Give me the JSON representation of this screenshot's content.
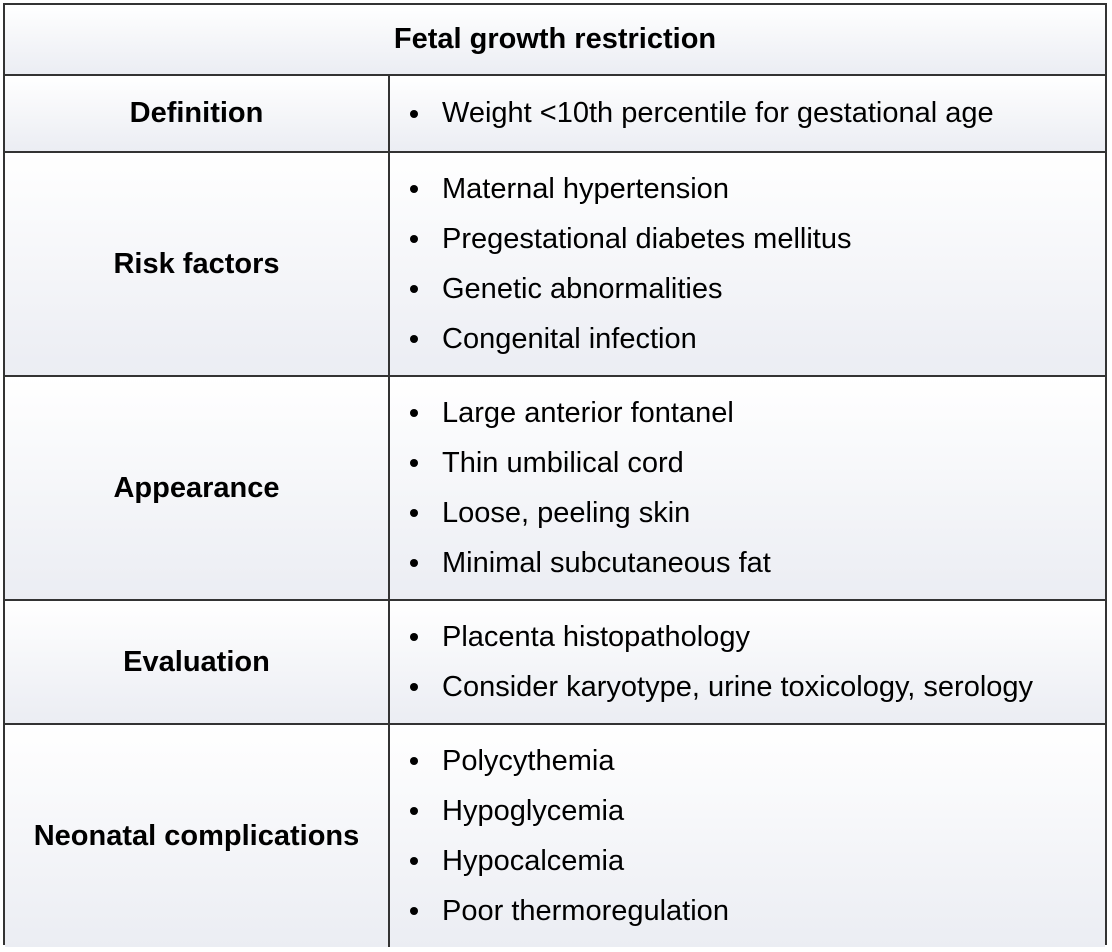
{
  "table": {
    "title": "Fetal growth restriction",
    "rows": [
      {
        "label": "Definition",
        "items": [
          "Weight <10th percentile for gestational age"
        ]
      },
      {
        "label": "Risk factors",
        "items": [
          "Maternal hypertension",
          "Pregestational diabetes mellitus",
          "Genetic abnormalities",
          "Congenital infection"
        ]
      },
      {
        "label": "Appearance",
        "items": [
          "Large anterior fontanel",
          "Thin umbilical cord",
          "Loose, peeling skin",
          "Minimal subcutaneous fat"
        ]
      },
      {
        "label": "Evaluation",
        "items": [
          "Placenta histopathology",
          "Consider karyotype, urine toxicology, serology"
        ]
      },
      {
        "label": "Neonatal complications",
        "items": [
          "Polycythemia",
          "Hypoglycemia",
          "Hypocalcemia",
          "Poor thermoregulation"
        ]
      }
    ]
  }
}
